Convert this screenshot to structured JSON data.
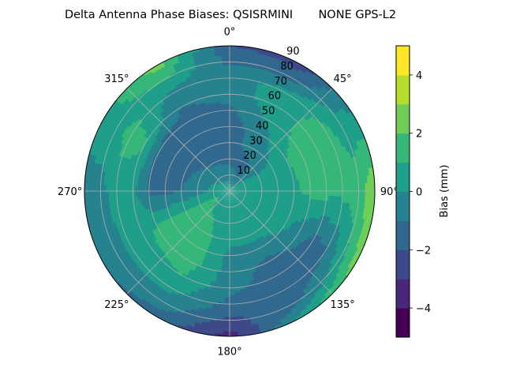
{
  "chart_data": {
    "type": "polar-contour",
    "title": "Delta Antenna Phase Biases: QSISRMINI       NONE GPS-L2",
    "theta_direction": "clockwise",
    "theta_zero": "top",
    "theta_tick_labels": [
      "0°",
      "45°",
      "90°",
      "135°",
      "180°",
      "225°",
      "270°",
      "315°"
    ],
    "theta_ticks": [
      0,
      45,
      90,
      135,
      180,
      225,
      270,
      315
    ],
    "r_tick_labels": [
      "10",
      "20",
      "30",
      "40",
      "50",
      "60",
      "70",
      "80",
      "90"
    ],
    "r_ticks": [
      10,
      20,
      30,
      40,
      50,
      60,
      70,
      80,
      90
    ],
    "rlim": [
      0,
      90
    ],
    "grid": true,
    "azimuth_deg": [
      0,
      30,
      60,
      90,
      120,
      150,
      180,
      210,
      240,
      270,
      300,
      330
    ],
    "zenith_deg": [
      0,
      10,
      20,
      30,
      40,
      50,
      60,
      70,
      80,
      90
    ],
    "bias_mm": [
      [
        0.5,
        0.5,
        0.5,
        0.5,
        0.5,
        0.5,
        0.5,
        0.5,
        0.5,
        0.5,
        0.5,
        0.5
      ],
      [
        -0.5,
        -1.2,
        0.3,
        0.5,
        0.5,
        0.5,
        0.3,
        0.5,
        1.2,
        0.3,
        0.0,
        -0.3
      ],
      [
        -1.3,
        -1.3,
        0.0,
        0.5,
        0.5,
        0.5,
        0.3,
        1.0,
        1.4,
        -0.5,
        -0.8,
        -1.2
      ],
      [
        -1.5,
        -0.5,
        0.2,
        0.5,
        0.5,
        0.4,
        0.2,
        1.3,
        1.5,
        -1.0,
        -1.3,
        -1.4
      ],
      [
        -1.5,
        -0.4,
        1.0,
        0.8,
        0.3,
        -0.5,
        -0.3,
        1.5,
        1.5,
        -1.3,
        -1.5,
        -1.5
      ],
      [
        -1.3,
        0.3,
        1.5,
        1.3,
        -0.6,
        -1.3,
        -0.5,
        1.5,
        1.4,
        -1.2,
        -1.3,
        -1.5
      ],
      [
        -0.5,
        0.6,
        1.5,
        1.4,
        -1.2,
        -1.5,
        -0.7,
        1.0,
        0.5,
        0.3,
        1.2,
        -1.0
      ],
      [
        -0.5,
        0.4,
        1.3,
        1.3,
        -1.0,
        -1.5,
        -1.3,
        0.3,
        0.2,
        0.4,
        1.5,
        -0.3
      ],
      [
        -1.2,
        -1.3,
        0.5,
        1.5,
        0.8,
        -1.3,
        -2.3,
        -0.5,
        -0.5,
        -0.3,
        0.5,
        1.2
      ],
      [
        -2.0,
        -2.5,
        0.3,
        3.0,
        2.5,
        0.5,
        -3.5,
        -1.5,
        -0.8,
        -0.5,
        0.5,
        2.5
      ]
    ],
    "levels": [
      -5,
      -4,
      -3,
      -2,
      -1,
      0,
      1,
      2,
      3,
      4,
      5
    ],
    "level_colors": [
      "#440154",
      "#482878",
      "#3e4989",
      "#31688e",
      "#26828e",
      "#1f9e89",
      "#35b779",
      "#6ece58",
      "#b5de2b",
      "#fde725"
    ],
    "colorbar": {
      "label": "Bias (mm)",
      "tick_labels": [
        "4",
        "2",
        "0",
        "−2",
        "−4"
      ],
      "ticks": [
        4,
        2,
        0,
        -2,
        -4
      ],
      "range": [
        -5,
        5
      ]
    }
  }
}
